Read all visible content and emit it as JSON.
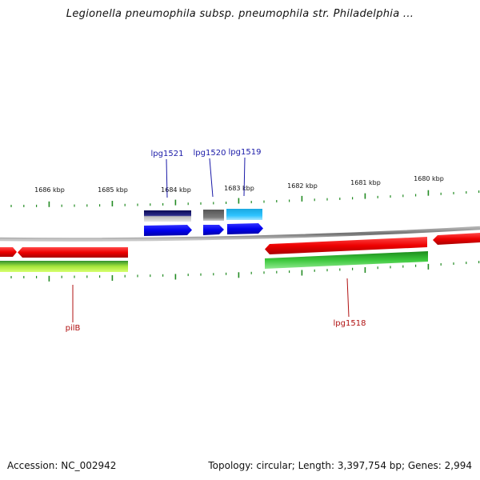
{
  "title": "Legionella pneumophila subsp. pneumophila str. Philadelphia ...",
  "footer": {
    "accession": "Accession: NC_002942",
    "summary": "Topology: circular; Length: 3,397,754 bp; Genes: 2,994"
  },
  "ruler": {
    "labels": [
      "1686 kbp",
      "1685 kbp",
      "1684 kbp",
      "1683 kbp",
      "1682 kbp",
      "1681 kbp",
      "1680 kbp"
    ],
    "tick_color": "#228b22"
  },
  "genes": {
    "lpg1521": "lpg1521",
    "lpg1520": "lpg1520",
    "lpg1519": "lpg1519",
    "pilB": "pilB",
    "lpg1518": "lpg1518"
  },
  "colors": {
    "label_forward": "#1a1aa8",
    "label_reverse": "#b01010",
    "forward_cds": "#0000ee",
    "reverse_cds": "#ee0000",
    "backbone": "#777777"
  }
}
